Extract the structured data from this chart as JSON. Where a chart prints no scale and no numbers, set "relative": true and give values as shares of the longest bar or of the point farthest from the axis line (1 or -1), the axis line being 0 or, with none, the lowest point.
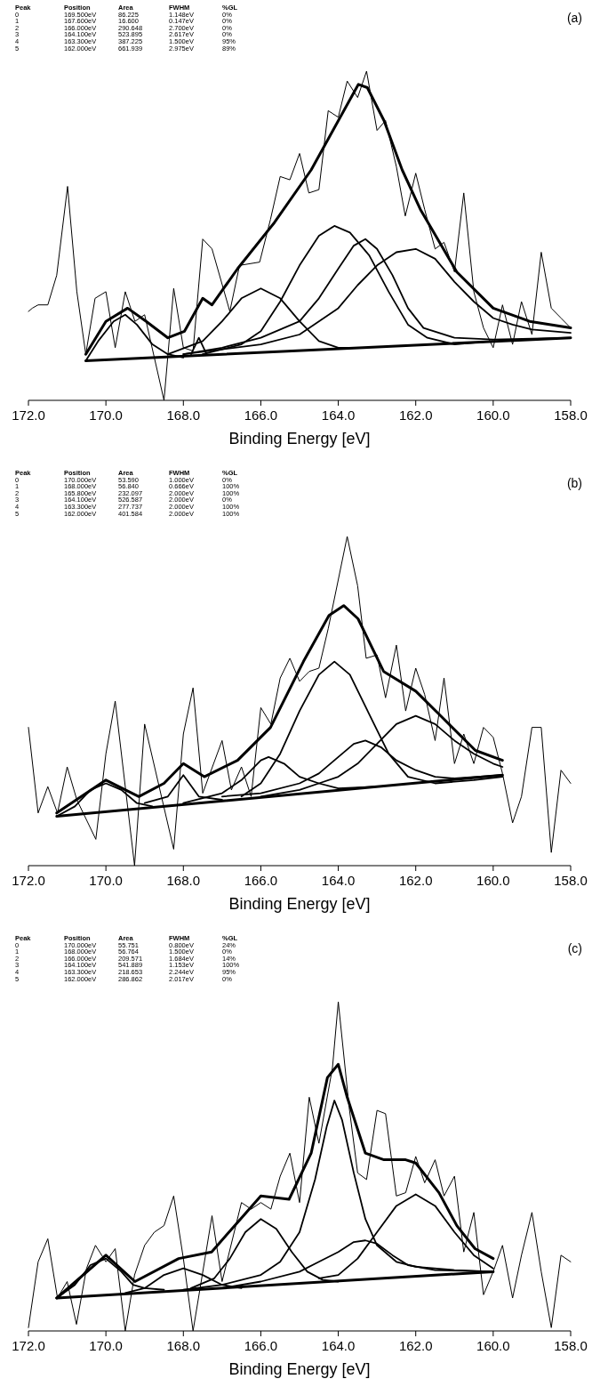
{
  "chart_data": [
    {
      "type": "line",
      "title": "(a)",
      "xlabel": "Binding Energy [eV]",
      "relative": true,
      "marker": "none",
      "line_style": "solid",
      "xlim": [
        172,
        158
      ],
      "xticks": [
        {
          "value": 172,
          "label": "172.0"
        },
        {
          "value": 170,
          "label": "170.0"
        },
        {
          "value": 168,
          "label": "168.0"
        },
        {
          "value": 166,
          "label": "166.0"
        },
        {
          "value": 164,
          "label": "164.0"
        },
        {
          "value": 162,
          "label": "162.0"
        },
        {
          "value": 160,
          "label": "160.0"
        },
        {
          "value": 158,
          "label": "158.0"
        }
      ],
      "annotations": [
        "Peak Position Area FWHM %GL",
        "0 169.500eV 86.225 1.148eV 0%",
        "1 167.600eV 16.600 0.147eV 0%",
        "2 166.000eV 290.648 2.700eV 0%",
        "3 164.100eV 523.895 2.617eV 0%",
        "4 163.300eV 387.225 1.500eV 95%",
        "5 162.000eV 661.939 2.975eV 89%"
      ],
      "series": [
        {
          "color": "#000000",
          "x": [
            172,
            171.9,
            171.75,
            171.5,
            171.27,
            170.99,
            170.75,
            170.52,
            170.28,
            170,
            169.76,
            169.5,
            169.25,
            169,
            168.5,
            168.25,
            168,
            167.75,
            167.5,
            167.26,
            166.8,
            166.55,
            166.03,
            165.75,
            165.5,
            165.25,
            165,
            164.76,
            164.5,
            164.26,
            164,
            163.77,
            163.5,
            163.27,
            163,
            162.78,
            162.5,
            162.27,
            162,
            161.77,
            161.5,
            161.27,
            161,
            160.76,
            160.5,
            160.25,
            160,
            159.76,
            159.5,
            159.27,
            159,
            158.76,
            158.5,
            158.25,
            158
          ],
          "values": [
            0.27,
            0.28,
            0.29,
            0.29,
            0.38,
            0.65,
            0.33,
            0.14,
            0.31,
            0.33,
            0.16,
            0.33,
            0.24,
            0.26,
            0,
            0.34,
            0.16,
            0.15,
            0.49,
            0.46,
            0.27,
            0.41,
            0.42,
            0.55,
            0.68,
            0.67,
            0.75,
            0.63,
            0.64,
            0.88,
            0.86,
            0.97,
            0.92,
            1,
            0.82,
            0.85,
            0.71,
            0.56,
            0.69,
            0.58,
            0.46,
            0.48,
            0.39,
            0.63,
            0.33,
            0.22,
            0.16,
            0.29,
            0.17,
            0.3,
            0.2,
            0.45,
            0.28,
            0.25,
            0.22
          ]
        },
        {
          "color": "#000000",
          "x": [
            170.52,
            170,
            169.44,
            168.96,
            168.4,
            167.97,
            167.5,
            167.26,
            166.6,
            165.65,
            164.7,
            163.95,
            163.48,
            163.25,
            162.82,
            162.35,
            161.88,
            160.94,
            160,
            159.06,
            158
          ],
          "values": [
            0.14,
            0.24,
            0.28,
            0.24,
            0.19,
            0.21,
            0.31,
            0.29,
            0.4,
            0.54,
            0.7,
            0.86,
            0.96,
            0.95,
            0.85,
            0.7,
            0.58,
            0.39,
            0.28,
            0.24,
            0.22
          ]
        },
        {
          "color": "#000000",
          "x": [
            170.52,
            158
          ],
          "values": [
            0.12,
            0.19
          ]
        },
        {
          "color": "#000000",
          "x": [
            170.52,
            170.2,
            169.8,
            169.5,
            169.2,
            168.8,
            168.4,
            168
          ],
          "values": [
            0.12,
            0.18,
            0.24,
            0.26,
            0.23,
            0.17,
            0.14,
            0.13
          ]
        },
        {
          "color": "#000000",
          "x": [
            167.8,
            167.6,
            167.4
          ],
          "values": [
            0.14,
            0.19,
            0.14
          ]
        },
        {
          "color": "#000000",
          "x": [
            168.4,
            167.5,
            167,
            166.5,
            166,
            165.5,
            165,
            164.5,
            164,
            163.5
          ],
          "values": [
            0.14,
            0.18,
            0.24,
            0.31,
            0.34,
            0.31,
            0.24,
            0.18,
            0.16,
            0.16
          ]
        },
        {
          "color": "#000000",
          "x": [
            167.5,
            166.5,
            166,
            165.5,
            165,
            164.5,
            164.1,
            163.7,
            163.2,
            162.7,
            162.2,
            161.7,
            161,
            160
          ],
          "values": [
            0.14,
            0.17,
            0.21,
            0.3,
            0.41,
            0.5,
            0.53,
            0.51,
            0.44,
            0.33,
            0.23,
            0.19,
            0.17,
            0.18
          ]
        },
        {
          "color": "#000000",
          "x": [
            168,
            167,
            166,
            165,
            164.5,
            164,
            163.6,
            163.3,
            163,
            162.6,
            162.2,
            161.8,
            161,
            160,
            158
          ],
          "values": [
            0.14,
            0.16,
            0.19,
            0.24,
            0.31,
            0.4,
            0.47,
            0.49,
            0.46,
            0.38,
            0.28,
            0.22,
            0.19,
            0.185,
            0.19
          ]
        },
        {
          "color": "#000000",
          "x": [
            168,
            167,
            166,
            165,
            164.5,
            164,
            163.5,
            163,
            162.5,
            162,
            161.5,
            161,
            160.5,
            160,
            159.5,
            159,
            158
          ],
          "values": [
            0.14,
            0.155,
            0.17,
            0.2,
            0.24,
            0.28,
            0.35,
            0.41,
            0.45,
            0.46,
            0.43,
            0.36,
            0.3,
            0.25,
            0.23,
            0.215,
            0.205
          ]
        }
      ]
    },
    {
      "type": "line",
      "title": "(b)",
      "xlabel": "Binding Energy [eV]",
      "relative": true,
      "marker": "none",
      "line_style": "solid",
      "xlim": [
        172,
        158
      ],
      "xticks": [
        {
          "value": 172,
          "label": "172.0"
        },
        {
          "value": 170,
          "label": "170.0"
        },
        {
          "value": 168,
          "label": "168.0"
        },
        {
          "value": 166,
          "label": "166.0"
        },
        {
          "value": 164,
          "label": "164.0"
        },
        {
          "value": 162,
          "label": "162.0"
        },
        {
          "value": 160,
          "label": "160.0"
        },
        {
          "value": 158,
          "label": "158.0"
        }
      ],
      "annotations": [
        "Peak Position Area FWHM %GL",
        "0 170.000eV 53.590 1.000eV 0%",
        "1 168.000eV 56.840 0.666eV 100%",
        "2 165.800eV 232.097 2.000eV 100%",
        "3 164.100eV 526.587 2.000eV 0%",
        "4 163.300eV 277.737 2.000eV 100%",
        "5 162.000eV 401.584 2.000eV 100%"
      ],
      "series": [
        {
          "color": "#000000",
          "x": [
            172,
            171.75,
            171.5,
            171.25,
            171,
            170.75,
            170.26,
            170,
            169.76,
            169.26,
            169,
            168.25,
            168,
            167.75,
            167.5,
            167,
            166.76,
            166.5,
            166.25,
            166,
            165.74,
            165.5,
            165.25,
            165,
            164.75,
            164.5,
            164.26,
            163.77,
            163.5,
            163.28,
            163,
            162.78,
            162.5,
            162.26,
            162,
            161.77,
            161.5,
            161.27,
            161,
            160.76,
            160.5,
            160.25,
            160,
            159.76,
            159.5,
            159.27,
            159,
            158.76,
            158.5,
            158.25,
            158
          ],
          "values": [
            0.42,
            0.16,
            0.24,
            0.16,
            0.3,
            0.2,
            0.08,
            0.34,
            0.5,
            0,
            0.43,
            0.05,
            0.4,
            0.54,
            0.22,
            0.38,
            0.23,
            0.3,
            0.21,
            0.48,
            0.43,
            0.57,
            0.63,
            0.56,
            0.59,
            0.6,
            0.72,
            1,
            0.85,
            0.63,
            0.64,
            0.51,
            0.67,
            0.47,
            0.6,
            0.52,
            0.38,
            0.57,
            0.31,
            0.4,
            0.31,
            0.42,
            0.39,
            0.28,
            0.13,
            0.21,
            0.42,
            0.42,
            0.04,
            0.29,
            0.25
          ]
        },
        {
          "color": "#000000",
          "x": [
            171.27,
            170,
            169.15,
            168.5,
            168,
            167.46,
            166.6,
            165.75,
            164.9,
            164.24,
            163.86,
            163.49,
            162.83,
            162,
            161.4,
            160.46,
            159.76
          ],
          "values": [
            0.16,
            0.26,
            0.21,
            0.25,
            0.31,
            0.27,
            0.32,
            0.42,
            0.62,
            0.76,
            0.79,
            0.75,
            0.59,
            0.53,
            0.46,
            0.35,
            0.32
          ]
        },
        {
          "color": "#000000",
          "x": [
            171.27,
            159.76
          ],
          "values": [
            0.15,
            0.275
          ]
        },
        {
          "color": "#000000",
          "x": [
            171.27,
            170.8,
            170.4,
            170,
            169.6,
            169.2,
            168.8
          ],
          "values": [
            0.15,
            0.18,
            0.23,
            0.25,
            0.23,
            0.19,
            0.18
          ]
        },
        {
          "color": "#000000",
          "x": [
            169,
            168.4,
            168,
            167.6,
            167
          ],
          "values": [
            0.19,
            0.21,
            0.275,
            0.21,
            0.2
          ]
        },
        {
          "color": "#000000",
          "x": [
            168,
            167,
            166.5,
            166,
            165.8,
            165.4,
            165,
            164.5,
            164,
            163
          ],
          "values": [
            0.19,
            0.22,
            0.26,
            0.32,
            0.33,
            0.31,
            0.27,
            0.25,
            0.235,
            0.24
          ]
        },
        {
          "color": "#000000",
          "x": [
            166.5,
            166,
            165.5,
            165,
            164.5,
            164.1,
            163.7,
            163.2,
            162.7,
            162.2,
            161.5,
            160.5,
            159.76
          ],
          "values": [
            0.21,
            0.25,
            0.34,
            0.47,
            0.58,
            0.62,
            0.58,
            0.46,
            0.34,
            0.27,
            0.25,
            0.26,
            0.27
          ]
        },
        {
          "color": "#000000",
          "x": [
            167,
            166,
            165,
            164.5,
            164,
            163.6,
            163.3,
            162.9,
            162.5,
            162,
            161.5,
            161,
            159.76
          ],
          "values": [
            0.21,
            0.22,
            0.25,
            0.28,
            0.33,
            0.37,
            0.38,
            0.36,
            0.32,
            0.29,
            0.27,
            0.265,
            0.275
          ]
        },
        {
          "color": "#000000",
          "x": [
            166,
            165,
            164.5,
            164,
            163.5,
            163,
            162.5,
            162,
            161.5,
            161,
            160.5,
            160,
            159.76
          ],
          "values": [
            0.21,
            0.23,
            0.25,
            0.27,
            0.31,
            0.37,
            0.43,
            0.455,
            0.43,
            0.38,
            0.34,
            0.31,
            0.3
          ]
        }
      ]
    },
    {
      "type": "line",
      "title": "(c)",
      "xlabel": "Binding Energy [eV]",
      "relative": true,
      "marker": "none",
      "line_style": "solid",
      "xlim": [
        172,
        158
      ],
      "xticks": [
        {
          "value": 172,
          "label": "172.0"
        },
        {
          "value": 170,
          "label": "170.0"
        },
        {
          "value": 168,
          "label": "168.0"
        },
        {
          "value": 166,
          "label": "166.0"
        },
        {
          "value": 164,
          "label": "164.0"
        },
        {
          "value": 162,
          "label": "162.0"
        },
        {
          "value": 160,
          "label": "160.0"
        },
        {
          "value": 158,
          "label": "158.0"
        }
      ],
      "annotations": [
        "Peak Position Area FWHM %GL",
        "0 170.000eV 55.751 0.800eV 24%",
        "1 168.000eV 56.764 1.500eV 0%",
        "2 166.000eV 209.571 1.684eV 14%",
        "3 164.100eV 541.889 1.153eV 100%",
        "4 163.300eV 218.653 2.244eV 95%",
        "5 162.000eV 286.862 2.017eV 0%"
      ],
      "series": [
        {
          "color": "#000000",
          "x": [
            172,
            171.75,
            171.5,
            171.25,
            171,
            170.76,
            170.5,
            170.27,
            170,
            169.76,
            169.5,
            169.26,
            169,
            168.75,
            168.5,
            168.25,
            168,
            167.75,
            167.26,
            167,
            166.5,
            166.25,
            166,
            165.74,
            165.5,
            165.25,
            165,
            164.75,
            164.5,
            164.15,
            164,
            163.72,
            163.5,
            163.27,
            163,
            162.78,
            162.5,
            162.26,
            162,
            161.77,
            161.5,
            161.27,
            161,
            160.76,
            160.5,
            160.25,
            160,
            159.76,
            159.5,
            159.27,
            159,
            158.76,
            158.5,
            158.25,
            158
          ],
          "values": [
            0.01,
            0.21,
            0.28,
            0.1,
            0.15,
            0.02,
            0.19,
            0.26,
            0.21,
            0.25,
            0,
            0.17,
            0.26,
            0.3,
            0.32,
            0.41,
            0.22,
            0,
            0.35,
            0.15,
            0.39,
            0.37,
            0.39,
            0.37,
            0.47,
            0.54,
            0.39,
            0.71,
            0.57,
            0.8,
            1,
            0.68,
            0.48,
            0.46,
            0.67,
            0.66,
            0.41,
            0.42,
            0.53,
            0.45,
            0.52,
            0.41,
            0.47,
            0.24,
            0.36,
            0.11,
            0.18,
            0.26,
            0.1,
            0.23,
            0.36,
            0.18,
            0.01,
            0.23,
            0.21
          ]
        },
        {
          "color": "#000000",
          "x": [
            171.27,
            170,
            169.25,
            168.12,
            167.27,
            166.6,
            166,
            165.27,
            164.7,
            164.28,
            164,
            163.77,
            163.3,
            162.82,
            162.26,
            162,
            161.4,
            160.94,
            160.47,
            160
          ],
          "values": [
            0.1,
            0.23,
            0.15,
            0.22,
            0.24,
            0.33,
            0.41,
            0.4,
            0.54,
            0.77,
            0.81,
            0.71,
            0.54,
            0.52,
            0.52,
            0.51,
            0.42,
            0.32,
            0.25,
            0.22
          ]
        },
        {
          "color": "#000000",
          "x": [
            171.27,
            160
          ],
          "values": [
            0.1,
            0.18
          ]
        },
        {
          "color": "#000000",
          "x": [
            171.27,
            170.8,
            170.4,
            170,
            169.6,
            169.3,
            169,
            168.5
          ],
          "values": [
            0.1,
            0.14,
            0.2,
            0.22,
            0.18,
            0.14,
            0.13,
            0.125
          ]
        },
        {
          "color": "#000000",
          "x": [
            169.5,
            169,
            168.5,
            168,
            167.5,
            167,
            166.5
          ],
          "values": [
            0.115,
            0.13,
            0.17,
            0.19,
            0.17,
            0.14,
            0.13
          ]
        },
        {
          "color": "#000000",
          "x": [
            167.8,
            167.2,
            166.8,
            166.4,
            166,
            165.6,
            165.2,
            164.8,
            164.4,
            164
          ],
          "values": [
            0.13,
            0.16,
            0.22,
            0.3,
            0.34,
            0.31,
            0.24,
            0.18,
            0.155,
            0.15
          ]
        },
        {
          "color": "#000000",
          "x": [
            168,
            167,
            166,
            165.5,
            165,
            164.6,
            164.3,
            164.1,
            163.9,
            163.6,
            163.3,
            163,
            162.5,
            162,
            161,
            160
          ],
          "values": [
            0.125,
            0.14,
            0.17,
            0.21,
            0.3,
            0.46,
            0.62,
            0.7,
            0.64,
            0.48,
            0.34,
            0.26,
            0.21,
            0.195,
            0.185,
            0.18
          ]
        },
        {
          "color": "#000000",
          "x": [
            167,
            166,
            165,
            164.5,
            164,
            163.6,
            163.3,
            163,
            162.6,
            162.2,
            161.5,
            160
          ],
          "values": [
            0.13,
            0.15,
            0.18,
            0.21,
            0.24,
            0.27,
            0.275,
            0.265,
            0.23,
            0.2,
            0.185,
            0.18
          ]
        },
        {
          "color": "#000000",
          "x": [
            164.5,
            164,
            163.5,
            163,
            162.5,
            162,
            161.5,
            161,
            160.5,
            160
          ],
          "values": [
            0.16,
            0.17,
            0.22,
            0.3,
            0.38,
            0.415,
            0.38,
            0.3,
            0.23,
            0.19
          ]
        }
      ]
    }
  ]
}
